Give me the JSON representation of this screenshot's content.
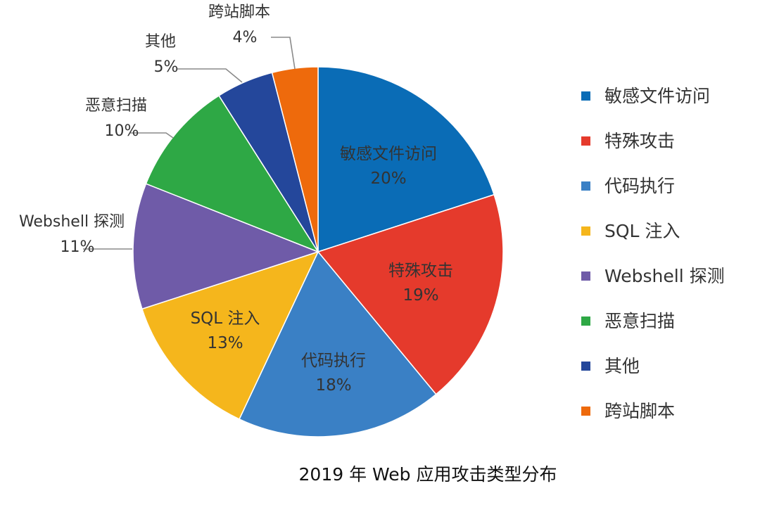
{
  "chart_data": {
    "type": "pie",
    "title": "2019 年 Web 应用攻击类型分布",
    "legend_position": "right",
    "slices": [
      {
        "label": "敏感文件访问",
        "value": 20,
        "value_label": "20%",
        "color": "#0a6cb6"
      },
      {
        "label": "特殊攻击",
        "value": 19,
        "value_label": "19%",
        "color": "#e53a2c"
      },
      {
        "label": "代码执行",
        "value": 18,
        "value_label": "18%",
        "color": "#3a80c5"
      },
      {
        "label": "SQL 注入",
        "value": 13,
        "value_label": "13%",
        "color": "#f5b61c"
      },
      {
        "label": "Webshell 探测",
        "value": 11,
        "value_label": "11%",
        "color": "#6f5ba8"
      },
      {
        "label": "恶意扫描",
        "value": 10,
        "value_label": "10%",
        "color": "#2ea845"
      },
      {
        "label": "其他",
        "value": 5,
        "value_label": "5%",
        "color": "#24479b"
      },
      {
        "label": "跨站脚本",
        "value": 4,
        "value_label": "4%",
        "color": "#ee6a0c"
      }
    ]
  }
}
